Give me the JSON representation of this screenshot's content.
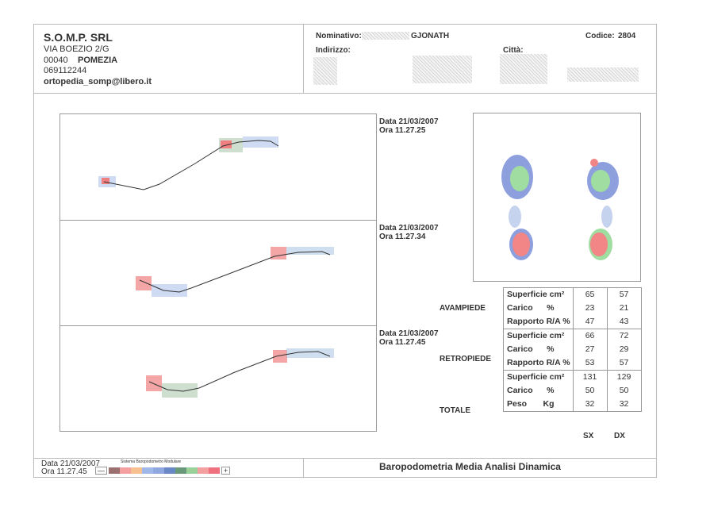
{
  "company": {
    "name": "S.O.M.P. SRL",
    "address": "VIA BOEZIO  2/G",
    "cap": "00040",
    "city": "POMEZIA",
    "phone": "069112244",
    "email": "ortopedia_somp@libero.it"
  },
  "patient": {
    "nominativo_label": "Nominativo:",
    "nominativo_value": "GJONATH",
    "codice_label": "Codice:",
    "codice_value": "2804",
    "indirizzo_label": "Indirizzo:",
    "citta_label": "Città:"
  },
  "recordings": [
    {
      "data": "Data 21/03/2007",
      "ora": "Ora 11.27.25"
    },
    {
      "data": "Data 21/03/2007",
      "ora": "Ora 11.27.34"
    },
    {
      "data": "Data 21/03/2007",
      "ora": "Ora 11.27.45"
    }
  ],
  "table": {
    "sections": [
      {
        "name": "AVAMPIEDE",
        "rows": [
          {
            "label": "Superficie cm²",
            "sx": "65",
            "dx": "57"
          },
          {
            "label": "Carico      %",
            "sx": "23",
            "dx": "21"
          },
          {
            "label": "Rapporto R/A %",
            "sx": "47",
            "dx": "43"
          }
        ]
      },
      {
        "name": "RETROPIEDE",
        "rows": [
          {
            "label": "Superficie cm²",
            "sx": "66",
            "dx": "72"
          },
          {
            "label": "Carico      %",
            "sx": "27",
            "dx": "29"
          },
          {
            "label": "Rapporto R/A %",
            "sx": "53",
            "dx": "57"
          }
        ]
      },
      {
        "name": "TOTALE",
        "rows": [
          {
            "label": "Superficie cm²",
            "sx": "131",
            "dx": "129"
          },
          {
            "label": "Carico      %",
            "sx": "50",
            "dx": "50"
          },
          {
            "label": "Peso       Kg",
            "sx": "32",
            "dx": "32"
          }
        ]
      }
    ],
    "col_sx": "SX",
    "col_dx": "DX"
  },
  "footer": {
    "data": "Data 21/03/2007",
    "ora": "Ora 11.27.45",
    "system": "Sistema Baropodometro Modulare",
    "minus": "—",
    "plus": "+",
    "title": "Baropodometria Media Analisi Dinamica"
  },
  "scale_colors": [
    "#9a7070",
    "#f4a0a0",
    "#f8c090",
    "#a0b8e8",
    "#90a8e0",
    "#6a88c8",
    "#6a9a7a",
    "#9ad09a",
    "#f4a0a0",
    "#f07080"
  ]
}
